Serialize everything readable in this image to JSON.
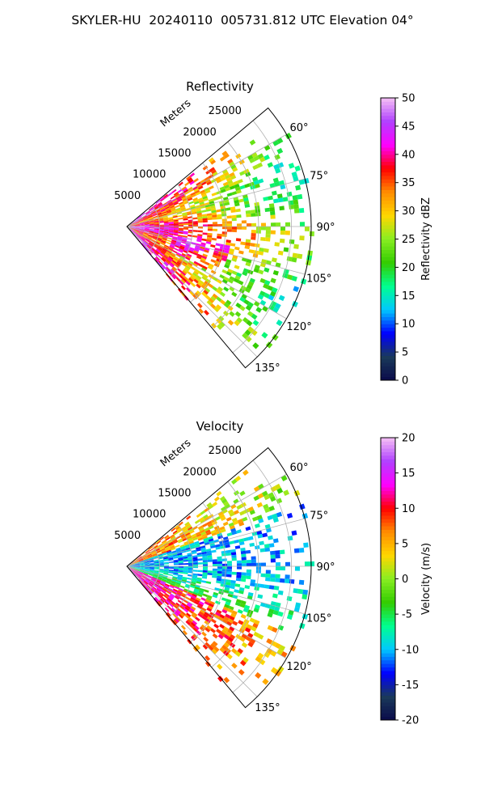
{
  "title": "SKYLER-HU  20240110  005731.812 UTC Elevation 04°",
  "chart_data": [
    {
      "type": "heatmap",
      "title": "Reflectivity",
      "projection": "polar-sector",
      "theta_range_deg": [
        50,
        140
      ],
      "theta_ticks": [
        "60°",
        "75°",
        "90°",
        "105°",
        "120°",
        "135°"
      ],
      "r_range_m": [
        0,
        28000
      ],
      "r_ticks": [
        "5000",
        "10000",
        "15000",
        "20000",
        "25000"
      ],
      "r_label": "Meters",
      "grid": true,
      "colorbar": {
        "label": "Reflectivity dBZ",
        "min": 0,
        "max": 50,
        "ticks": [
          "0",
          "5",
          "10",
          "15",
          "20",
          "25",
          "30",
          "35",
          "40",
          "45",
          "50"
        ]
      },
      "colors": [
        "#0a0a4a",
        "#1a3a5a",
        "#0000ff",
        "#00c8ff",
        "#00ff90",
        "#33cc00",
        "#88ee22",
        "#ffd700",
        "#ff8c00",
        "#ff0000",
        "#ff00ff",
        "#b040ff",
        "#f4c0f4"
      ],
      "description_values": {
        "near_range_dbz": 40,
        "mid_range_dbz": 30,
        "far_range_dbz": 20
      }
    },
    {
      "type": "heatmap",
      "title": "Velocity",
      "projection": "polar-sector",
      "theta_range_deg": [
        50,
        140
      ],
      "theta_ticks": [
        "60°",
        "75°",
        "90°",
        "105°",
        "120°",
        "135°"
      ],
      "r_range_m": [
        0,
        28000
      ],
      "r_ticks": [
        "5000",
        "10000",
        "15000",
        "20000",
        "25000"
      ],
      "r_label": "Meters",
      "grid": true,
      "colorbar": {
        "label": "Velocity (m/s)",
        "min": -20,
        "max": 20,
        "ticks": [
          "-20",
          "-15",
          "-10",
          "-5",
          "0",
          "5",
          "10",
          "15",
          "20"
        ]
      },
      "colors": [
        "#0a0a4a",
        "#1a3a5a",
        "#0000ff",
        "#00c8ff",
        "#00ff90",
        "#33cc00",
        "#88ee22",
        "#ffd700",
        "#ff8c00",
        "#ff0000",
        "#ff00ff",
        "#b040ff",
        "#f4c0f4"
      ],
      "description_values": {
        "north_edge_ms": 10,
        "center_band_ms": -8,
        "south_edge_ms": 15
      }
    }
  ]
}
